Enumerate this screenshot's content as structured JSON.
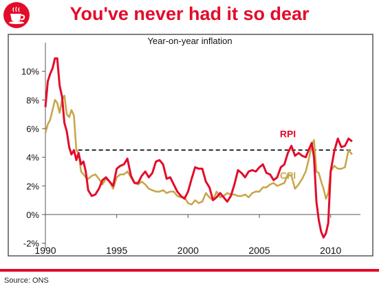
{
  "header": {
    "title": "You've never had it so dear",
    "logo_icon": "teacup-logo-icon"
  },
  "footer": {
    "source": "Source: ONS"
  },
  "colors": {
    "brand": "#e30b2a",
    "rpi": "#e30b2a",
    "cpi": "#c8a64a",
    "axis": "#555555",
    "reference": "#000000"
  },
  "chart_data": {
    "type": "line",
    "title": "Year-on-year inflation",
    "xlabel": "",
    "ylabel": "",
    "xlim": [
      1990,
      2011.7
    ],
    "ylim": [
      -2.5,
      12
    ],
    "x_ticks": [
      1990,
      1995,
      2000,
      2005,
      2010
    ],
    "x_tick_labels": [
      "1990",
      "1995",
      "2000",
      "2005",
      "2010"
    ],
    "y_ticks": [
      -2,
      0,
      2,
      4,
      6,
      8,
      10
    ],
    "y_tick_labels": [
      "-2%",
      "0%",
      "2%",
      "4%",
      "6%",
      "8%",
      "10%"
    ],
    "grid": false,
    "reference_line": {
      "y": 4.5,
      "x_start": 1992.3,
      "x_end": 2011.5,
      "style": "dashed"
    },
    "series": [
      {
        "name": "RPI",
        "label_at": [
          2007.0,
          5.4
        ],
        "x": [
          1990.0,
          1990.17,
          1990.33,
          1990.5,
          1990.67,
          1990.83,
          1991.0,
          1991.17,
          1991.33,
          1991.5,
          1991.67,
          1991.83,
          1992.0,
          1992.17,
          1992.33,
          1992.5,
          1992.67,
          1992.83,
          1993.0,
          1993.25,
          1993.5,
          1993.75,
          1994.0,
          1994.25,
          1994.5,
          1994.75,
          1995.0,
          1995.25,
          1995.5,
          1995.75,
          1996.0,
          1996.25,
          1996.5,
          1996.75,
          1997.0,
          1997.25,
          1997.5,
          1997.75,
          1998.0,
          1998.25,
          1998.5,
          1998.75,
          1999.0,
          1999.25,
          1999.5,
          1999.75,
          2000.0,
          2000.25,
          2000.5,
          2000.75,
          2001.0,
          2001.25,
          2001.5,
          2001.75,
          2002.0,
          2002.25,
          2002.5,
          2002.75,
          2003.0,
          2003.25,
          2003.5,
          2003.75,
          2004.0,
          2004.25,
          2004.5,
          2004.75,
          2005.0,
          2005.25,
          2005.5,
          2005.75,
          2006.0,
          2006.25,
          2006.5,
          2006.75,
          2007.0,
          2007.25,
          2007.5,
          2007.75,
          2008.0,
          2008.25,
          2008.5,
          2008.67,
          2008.83,
          2009.0,
          2009.17,
          2009.33,
          2009.5,
          2009.67,
          2009.83,
          2010.0,
          2010.25,
          2010.5,
          2010.75,
          2011.0,
          2011.25,
          2011.5
        ],
        "values": [
          7.5,
          9.3,
          9.8,
          10.2,
          10.9,
          10.9,
          9.0,
          8.2,
          6.4,
          5.8,
          4.7,
          4.2,
          4.5,
          3.8,
          4.3,
          3.5,
          3.7,
          3.0,
          1.7,
          1.3,
          1.4,
          1.8,
          2.4,
          2.6,
          2.3,
          2.0,
          3.2,
          3.4,
          3.5,
          3.9,
          2.7,
          2.2,
          2.2,
          2.7,
          3.0,
          2.6,
          2.9,
          3.7,
          3.8,
          3.5,
          2.5,
          2.6,
          2.1,
          1.6,
          1.3,
          1.1,
          1.6,
          2.5,
          3.3,
          3.2,
          3.2,
          2.3,
          1.9,
          1.0,
          1.2,
          1.5,
          1.2,
          0.9,
          1.3,
          2.1,
          3.1,
          2.9,
          2.6,
          3.0,
          3.1,
          3.0,
          3.3,
          3.5,
          2.9,
          2.8,
          2.4,
          2.6,
          3.3,
          3.5,
          4.3,
          4.8,
          4.1,
          4.3,
          4.1,
          4.0,
          4.6,
          5.0,
          4.0,
          0.9,
          -0.4,
          -1.2,
          -1.6,
          -1.3,
          -0.6,
          3.0,
          4.4,
          5.3,
          4.7,
          4.8,
          5.3,
          5.1
        ]
      },
      {
        "name": "CPI",
        "label_at": [
          2007.0,
          2.5
        ],
        "x": [
          1990.0,
          1990.17,
          1990.33,
          1990.5,
          1990.67,
          1990.83,
          1991.0,
          1991.17,
          1991.33,
          1991.5,
          1991.67,
          1991.83,
          1992.0,
          1992.17,
          1992.33,
          1992.5,
          1992.67,
          1992.83,
          1993.0,
          1993.25,
          1993.5,
          1993.75,
          1994.0,
          1994.25,
          1994.5,
          1994.75,
          1995.0,
          1995.25,
          1995.5,
          1995.75,
          1996.0,
          1996.25,
          1996.5,
          1996.75,
          1997.0,
          1997.25,
          1997.5,
          1997.75,
          1998.0,
          1998.25,
          1998.5,
          1998.75,
          1999.0,
          1999.25,
          1999.5,
          1999.75,
          2000.0,
          2000.25,
          2000.5,
          2000.75,
          2001.0,
          2001.25,
          2001.5,
          2001.75,
          2002.0,
          2002.25,
          2002.5,
          2002.75,
          2003.0,
          2003.25,
          2003.5,
          2003.75,
          2004.0,
          2004.25,
          2004.5,
          2004.75,
          2005.0,
          2005.25,
          2005.5,
          2005.75,
          2006.0,
          2006.25,
          2006.5,
          2006.75,
          2007.0,
          2007.25,
          2007.5,
          2007.75,
          2008.0,
          2008.25,
          2008.5,
          2008.67,
          2008.83,
          2009.0,
          2009.17,
          2009.33,
          2009.5,
          2009.67,
          2009.83,
          2010.0,
          2010.25,
          2010.5,
          2010.75,
          2011.0,
          2011.25,
          2011.5
        ],
        "values": [
          5.7,
          6.3,
          6.6,
          7.3,
          8.0,
          7.8,
          7.1,
          8.0,
          8.3,
          7.0,
          6.8,
          7.3,
          6.9,
          4.5,
          4.3,
          3.0,
          2.8,
          2.6,
          2.5,
          2.7,
          2.8,
          2.5,
          2.1,
          2.5,
          2.3,
          1.8,
          2.6,
          2.8,
          2.8,
          3.0,
          2.6,
          2.2,
          2.1,
          2.3,
          2.1,
          1.8,
          1.7,
          1.6,
          1.6,
          1.7,
          1.5,
          1.6,
          1.6,
          1.3,
          1.2,
          1.2,
          0.8,
          0.7,
          1.0,
          0.8,
          0.9,
          1.5,
          1.2,
          1.0,
          1.6,
          1.2,
          1.3,
          1.5,
          1.4,
          1.4,
          1.3,
          1.3,
          1.4,
          1.2,
          1.5,
          1.6,
          1.6,
          1.9,
          1.9,
          2.1,
          2.2,
          2.0,
          2.1,
          2.2,
          2.8,
          2.7,
          1.8,
          2.1,
          2.5,
          3.0,
          4.0,
          4.8,
          5.2,
          3.0,
          2.9,
          2.3,
          1.8,
          1.1,
          1.5,
          3.0,
          3.4,
          3.2,
          3.2,
          3.3,
          4.5,
          4.2
        ]
      }
    ]
  }
}
